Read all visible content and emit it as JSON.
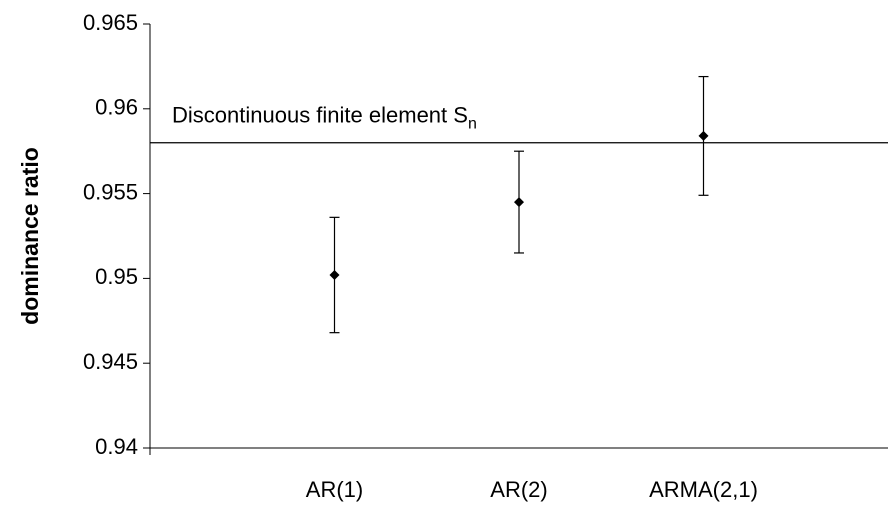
{
  "chart_data": {
    "type": "errorbar",
    "y_label": "dominance ratio",
    "categories": [
      "AR(1)",
      "AR(2)",
      "ARMA(2,1)"
    ],
    "values": [
      0.9502,
      0.9545,
      0.9584
    ],
    "errors": [
      0.0034,
      0.003,
      0.0035
    ],
    "color": "#000000",
    "ylim": [
      0.94,
      0.965
    ],
    "yticks": [
      0.94,
      0.945,
      0.95,
      0.955,
      0.96,
      0.965
    ],
    "reference_line": {
      "value": 0.958,
      "label": "Discontinuous finite element S",
      "subscript": "n"
    },
    "grid": false
  }
}
